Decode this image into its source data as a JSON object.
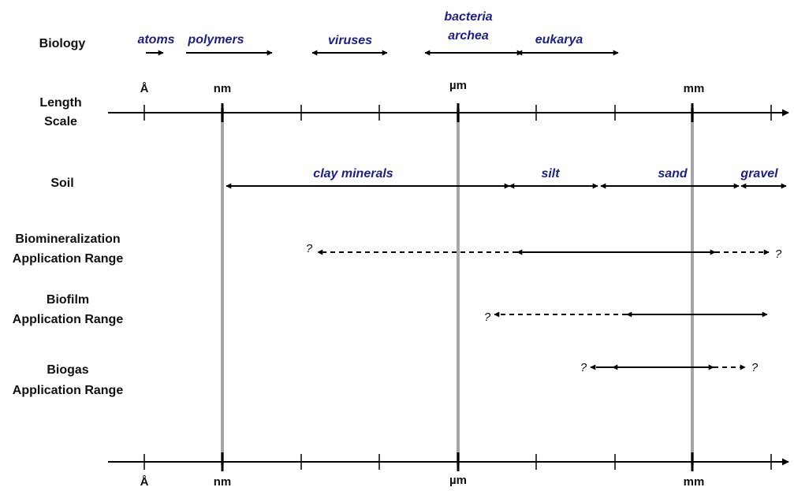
{
  "colors": {
    "category_text": "#1b1f8c",
    "guide_line": "#a6a6a6",
    "axis": "#000000"
  },
  "row_labels": {
    "biology": "Biology",
    "length_scale_1": "Length",
    "length_scale_2": "Scale",
    "soil": "Soil",
    "biomineralization_1": "Biomineralization",
    "biomineralization_2": "Application Range",
    "biofilm_1": "Biofilm",
    "biofilm_2": "Application Range",
    "biogas_1": "Biogas",
    "biogas_2": "Application Range"
  },
  "scale_units": {
    "angstrom": "Å",
    "nanometer": "nm",
    "micrometer": "µm",
    "millimeter": "mm"
  },
  "biology": {
    "atoms": "atoms",
    "polymers": "polymers",
    "viruses": "viruses",
    "bacteria_1": "bacteria",
    "bacteria_2": "archea",
    "eukarya": "eukarya"
  },
  "soil": {
    "clay": "clay minerals",
    "silt": "silt",
    "sand": "sand",
    "gravel": "gravel"
  },
  "unknown_marker": "?"
}
